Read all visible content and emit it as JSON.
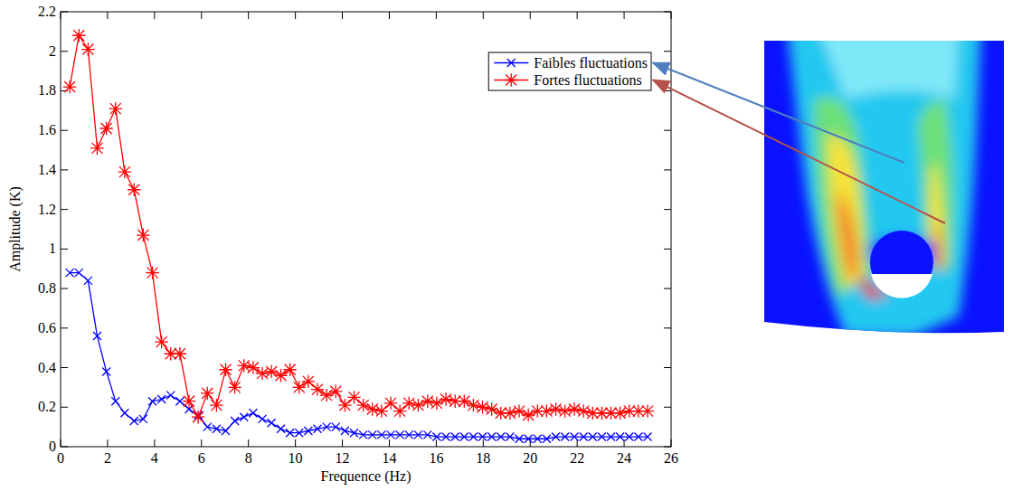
{
  "chart_data": {
    "type": "line",
    "x_label": "Frequence (Hz)",
    "y_label": "Amplitude (K)",
    "x": [
      0.39,
      0.78,
      1.17,
      1.56,
      1.95,
      2.34,
      2.73,
      3.13,
      3.52,
      3.91,
      4.3,
      4.69,
      5.08,
      5.47,
      5.86,
      6.25,
      6.64,
      7.03,
      7.42,
      7.81,
      8.2,
      8.59,
      8.98,
      9.38,
      9.77,
      10.16,
      10.55,
      10.94,
      11.33,
      11.72,
      12.11,
      12.5,
      12.89,
      13.28,
      13.67,
      14.06,
      14.45,
      14.84,
      15.23,
      15.63,
      16.02,
      16.41,
      16.8,
      17.19,
      17.58,
      17.97,
      18.36,
      18.75,
      19.14,
      19.53,
      19.92,
      20.31,
      20.7,
      21.09,
      21.48,
      21.88,
      22.27,
      22.66,
      23.05,
      23.44,
      23.83,
      24.22,
      24.61,
      25
    ],
    "series": [
      {
        "name": "Faibles fluctuations",
        "color": "#0000ff",
        "marker": "x",
        "line_style": "solid",
        "values": [
          0.88,
          0.88,
          0.84,
          0.56,
          0.38,
          0.23,
          0.17,
          0.13,
          0.14,
          0.23,
          0.24,
          0.26,
          0.23,
          0.19,
          0.16,
          0.1,
          0.09,
          0.08,
          0.13,
          0.15,
          0.17,
          0.14,
          0.12,
          0.09,
          0.07,
          0.07,
          0.08,
          0.09,
          0.1,
          0.1,
          0.08,
          0.07,
          0.06,
          0.06,
          0.06,
          0.06,
          0.06,
          0.06,
          0.06,
          0.06,
          0.05,
          0.05,
          0.05,
          0.05,
          0.05,
          0.05,
          0.05,
          0.05,
          0.05,
          0.04,
          0.04,
          0.04,
          0.04,
          0.05,
          0.05,
          0.05,
          0.05,
          0.05,
          0.05,
          0.05,
          0.05,
          0.05,
          0.05,
          0.05
        ]
      },
      {
        "name": "Fortes fluctuations",
        "color": "#ff0000",
        "marker": "star",
        "line_style": "solid",
        "values": [
          1.82,
          2.08,
          2.01,
          1.51,
          1.61,
          1.71,
          1.39,
          1.3,
          1.07,
          0.88,
          0.53,
          0.47,
          0.47,
          0.23,
          0.15,
          0.27,
          0.21,
          0.39,
          0.3,
          0.41,
          0.4,
          0.37,
          0.38,
          0.36,
          0.39,
          0.3,
          0.33,
          0.29,
          0.26,
          0.28,
          0.21,
          0.25,
          0.21,
          0.19,
          0.18,
          0.22,
          0.18,
          0.22,
          0.21,
          0.23,
          0.22,
          0.24,
          0.23,
          0.23,
          0.21,
          0.2,
          0.19,
          0.17,
          0.17,
          0.18,
          0.16,
          0.18,
          0.18,
          0.19,
          0.18,
          0.19,
          0.18,
          0.17,
          0.17,
          0.17,
          0.17,
          0.18,
          0.18,
          0.18
        ]
      }
    ],
    "xlim": [
      0,
      26
    ],
    "xticks": [
      0,
      2,
      4,
      6,
      8,
      10,
      12,
      14,
      16,
      18,
      20,
      22,
      24,
      26
    ],
    "ylim": [
      0,
      2.2
    ],
    "yticks": [
      0,
      0.2,
      0.4,
      0.6,
      0.8,
      1,
      1.2,
      1.4,
      1.6,
      1.8,
      2,
      2.2
    ],
    "grid": false,
    "legend": "upper right"
  }
}
